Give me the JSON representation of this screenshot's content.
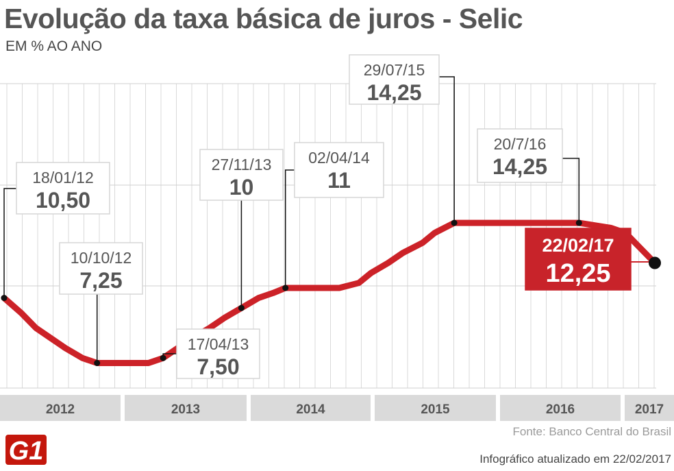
{
  "header": {
    "title": "Evolução da taxa básica de juros - Selic",
    "subtitle": "EM % AO ANO"
  },
  "footer": {
    "source": "Fonte: Banco Central do Brasil",
    "updated": "Infográfico atualizado em 22/02/2017",
    "logo": "G1"
  },
  "colors": {
    "line": "#cc2228",
    "highlight_fill": "#c8232a",
    "year_band": "#dadada",
    "grid": "#d9d9d9",
    "label_box_border": "#d6d6d6",
    "text": "#555555"
  },
  "chart_data": {
    "type": "line",
    "title": "Evolução da taxa básica de juros - Selic",
    "ylabel": "EM % AO ANO",
    "x_categories": [
      "2012",
      "2013",
      "2014",
      "2015",
      "2016",
      "2017"
    ],
    "x_start": "2012-01-01",
    "x_end": "2017-03-01",
    "ylim": [
      6,
      16
    ],
    "grid": true,
    "series": [
      {
        "points": [
          [
            "2012-01-18",
            10.5
          ],
          [
            "2012-03-07",
            9.75
          ],
          [
            "2012-04-18",
            9.0
          ],
          [
            "2012-05-30",
            8.5
          ],
          [
            "2012-07-11",
            8.0
          ],
          [
            "2012-08-29",
            7.5
          ],
          [
            "2012-10-10",
            7.25
          ],
          [
            "2013-01-16",
            7.25
          ],
          [
            "2013-03-06",
            7.25
          ],
          [
            "2013-04-17",
            7.5
          ],
          [
            "2013-05-29",
            8.0
          ],
          [
            "2013-07-10",
            8.5
          ],
          [
            "2013-08-28",
            9.0
          ],
          [
            "2013-10-09",
            9.5
          ],
          [
            "2013-11-27",
            10.0
          ],
          [
            "2014-01-15",
            10.5
          ],
          [
            "2014-02-26",
            10.75
          ],
          [
            "2014-04-02",
            11.0
          ],
          [
            "2014-09-03",
            11.0
          ],
          [
            "2014-10-29",
            11.25
          ],
          [
            "2014-12-03",
            11.75
          ],
          [
            "2015-01-21",
            12.25
          ],
          [
            "2015-03-04",
            12.75
          ],
          [
            "2015-04-29",
            13.25
          ],
          [
            "2015-06-03",
            13.75
          ],
          [
            "2015-07-29",
            14.25
          ],
          [
            "2016-07-20",
            14.25
          ],
          [
            "2016-10-19",
            14.0
          ],
          [
            "2016-11-30",
            13.75
          ],
          [
            "2017-01-11",
            13.0
          ],
          [
            "2017-02-22",
            12.25
          ]
        ]
      }
    ],
    "annotations": [
      {
        "id": "ann-2012-01",
        "date": "2012-01-18",
        "value": 10.5,
        "label_date": "18/01/12",
        "label_value": "10,50"
      },
      {
        "id": "ann-2012-10",
        "date": "2012-10-10",
        "value": 7.25,
        "label_date": "10/10/12",
        "label_value": "7,25"
      },
      {
        "id": "ann-2013-04",
        "date": "2013-04-17",
        "value": 7.5,
        "label_date": "17/04/13",
        "label_value": "7,50"
      },
      {
        "id": "ann-2013-11",
        "date": "2013-11-27",
        "value": 10.0,
        "label_date": "27/11/13",
        "label_value": "10"
      },
      {
        "id": "ann-2014-04",
        "date": "2014-04-02",
        "value": 11.0,
        "label_date": "02/04/14",
        "label_value": "11"
      },
      {
        "id": "ann-2015-07",
        "date": "2015-07-29",
        "value": 14.25,
        "label_date": "29/07/15",
        "label_value": "14,25"
      },
      {
        "id": "ann-2016-07",
        "date": "2016-07-20",
        "value": 14.25,
        "label_date": "20/7/16",
        "label_value": "14,25"
      },
      {
        "id": "ann-2017-02",
        "date": "2017-02-22",
        "value": 12.25,
        "label_date": "22/02/17",
        "label_value": "12,25",
        "highlight": true
      }
    ]
  }
}
